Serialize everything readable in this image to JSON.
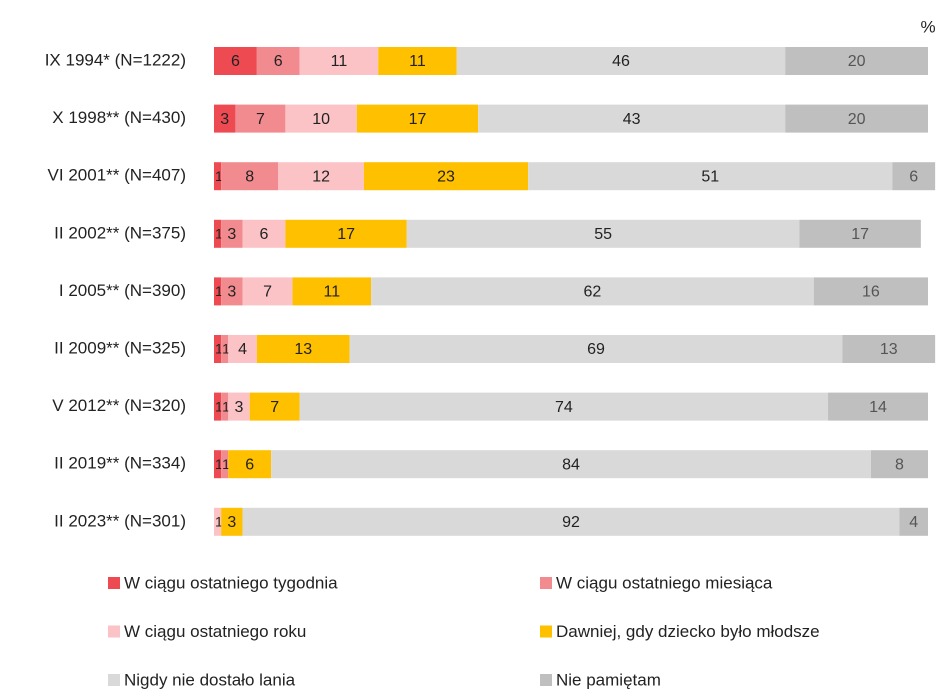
{
  "chart_data": {
    "type": "stacked-bar-horizontal",
    "unit": "%",
    "categories": [
      "IX 1994* (N=1222)",
      "X 1998** (N=430)",
      "VI 2001** (N=407)",
      "II 2002** (N=375)",
      "I 2005** (N=390)",
      "II 2009** (N=325)",
      "V 2012** (N=320)",
      "II 2019** (N=334)",
      "II 2023** (N=301)"
    ],
    "xlim": [
      0,
      100
    ],
    "series": [
      {
        "name": "W ciągu ostatniego tygodnia",
        "color": "#ee4a52",
        "values": [
          6,
          3,
          1,
          1,
          1,
          1,
          1,
          1,
          null
        ]
      },
      {
        "name": "W ciągu ostatniego miesiąca",
        "color": "#f28b8f",
        "values": [
          6,
          7,
          8,
          3,
          3,
          1,
          1,
          1,
          null
        ]
      },
      {
        "name": "W ciągu ostatniego roku",
        "color": "#fbc3c6",
        "values": [
          11,
          10,
          12,
          6,
          7,
          4,
          3,
          null,
          1
        ]
      },
      {
        "name": "Dawniej, gdy dziecko było młodsze",
        "color": "#ffc000",
        "values": [
          11,
          17,
          23,
          17,
          11,
          13,
          7,
          6,
          3
        ]
      },
      {
        "name": "Nigdy nie dostało lania",
        "color": "#d9d9d9",
        "values": [
          46,
          43,
          51,
          55,
          62,
          69,
          74,
          84,
          92
        ]
      },
      {
        "name": "Nie pamiętam",
        "color": "#bfbfbf",
        "values": [
          20,
          20,
          6,
          17,
          16,
          13,
          14,
          8,
          4
        ]
      }
    ]
  }
}
